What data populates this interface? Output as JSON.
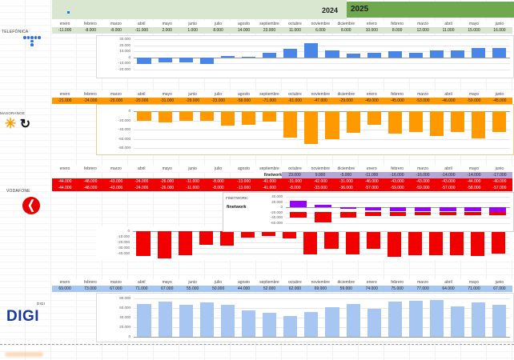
{
  "years": {
    "y2024": "2024",
    "y2025": "2025"
  },
  "months": [
    "enero",
    "febrero",
    "marzo",
    "abril",
    "mayo",
    "junio",
    "julio",
    "agosto",
    "septiembre",
    "octubre",
    "noviembre",
    "diciembre",
    "enero",
    "febrero",
    "marzo",
    "abril",
    "mayo",
    "junio"
  ],
  "colors": {
    "telefonica": "#4a86e8",
    "masorange": "#ff9900",
    "vodafone": "#f20000",
    "finetwork": "#9900ff",
    "digi": "#a7c7f2",
    "band_light": "#d9e7d0",
    "band_dark": "#6fa84f",
    "mint_row": "#d9e7d2",
    "purple_row": "#b3a6d9"
  },
  "sections": {
    "telefonica": {
      "name": "TELEFÓNICA",
      "values": [
        "-11.000",
        "-8.000",
        "-8.000",
        "-11.000",
        "2.000",
        "1.000",
        "8.000",
        "14.000",
        "23.000",
        "11.000",
        "6.000",
        "8.000",
        "10.000",
        "8.000",
        "12.000",
        "11.000",
        "15.000",
        "16.000"
      ],
      "nums": [
        -11,
        -8,
        -8,
        -11,
        2,
        1,
        8,
        14,
        23,
        11,
        6,
        8,
        10,
        8,
        12,
        11,
        15,
        16
      ],
      "axis": [
        "30.000",
        "20.000",
        "10.000",
        "0",
        "-10.000",
        "-20.000"
      ]
    },
    "masorange": {
      "name": "MASORANGE",
      "values": [
        "-21.000",
        "-24.000",
        "-20.000",
        "-20.000",
        "-31.000",
        "-29.000",
        "-23.000",
        "-58.000",
        "-71.000",
        "-61.000",
        "-47.000",
        "-29.000",
        "-49.000",
        "-45.000",
        "-53.000",
        "-46.000",
        "-59.000",
        "-45.000"
      ],
      "nums": [
        -21,
        -24,
        -20,
        -20,
        -31,
        -29,
        -23,
        -58,
        -71,
        -61,
        -47,
        -29,
        -49,
        -45,
        -53,
        -46,
        -59,
        -45
      ],
      "axis": [
        "0",
        "-20.000",
        "-40.000",
        "-60.000",
        "-80.000"
      ]
    },
    "vodafone": {
      "name": "VODAFONE",
      "values_row1": [
        "-44.000",
        "-48.000",
        "-43.000",
        "-24.000",
        "-26.000",
        "-11.000",
        "-8.000",
        "-13.000",
        "-41.000",
        "-31.000",
        "-42.000",
        "-31.000",
        "-46.000",
        "-43.000",
        "-43.000",
        "-43.000",
        "-44.000",
        "-40.000"
      ],
      "values_row2": [
        "-44.000",
        "-48.000",
        "-43.000",
        "-24.000",
        "-26.000",
        "-11.000",
        "-8.000",
        "-13.000",
        "-41.000",
        "-8.000",
        "-33.000",
        "-36.000",
        "-57.000",
        "-59.000",
        "-59.000",
        "-57.000",
        "-58.000",
        "-57.000"
      ],
      "nums": [
        -44,
        -48,
        -43,
        -24,
        -26,
        -11,
        -8,
        -13,
        -41,
        -31,
        -42,
        -31,
        -46,
        -43,
        -43,
        -43,
        -44,
        -40
      ],
      "axis": [
        "0",
        "-10.000",
        "-20.000",
        "-30.000",
        "-40.000"
      ],
      "inset": {
        "title": "FINETWORK:",
        "legend": "finetwork",
        "row_label": "finetwork",
        "values": [
          "23.000",
          "9.000",
          "-5.000",
          "-11.000",
          "-16.000",
          "-16.000",
          "-14.000",
          "-14.000",
          "-17.000"
        ],
        "nums": [
          23,
          9,
          -5,
          -11,
          -16,
          -16,
          -14,
          -14,
          -17
        ],
        "red_nums": [
          -31,
          -62,
          -31,
          -22,
          -23,
          -21,
          -21,
          -19,
          -21
        ],
        "axis": [
          "40.000",
          "20.000",
          "0",
          "-20.000",
          "-40.000",
          "-60.000"
        ]
      }
    },
    "digi": {
      "name": "DIGI",
      "logo": "DIGI",
      "values": [
        "69.000",
        "73.000",
        "67.000",
        "71.000",
        "67.000",
        "55.000",
        "50.000",
        "44.000",
        "52.000",
        "62.000",
        "69.000",
        "59.000",
        "74.000",
        "75.000",
        "77.000",
        "64.000",
        "71.000",
        "67.000"
      ],
      "nums": [
        69,
        73,
        67,
        71,
        67,
        55,
        50,
        44,
        52,
        62,
        69,
        59,
        74,
        75,
        77,
        64,
        71,
        67
      ],
      "axis": [
        "80.000",
        "60.000",
        "40.000",
        "20.000",
        "0"
      ]
    }
  },
  "chart_data": [
    {
      "type": "bar",
      "title": "TELEFÓNICA",
      "categories": [
        "enero",
        "febrero",
        "marzo",
        "abril",
        "mayo",
        "junio",
        "julio",
        "agosto",
        "septiembre",
        "octubre",
        "noviembre",
        "diciembre",
        "enero",
        "febrero",
        "marzo",
        "abril",
        "mayo",
        "junio"
      ],
      "values": [
        -11000,
        -8000,
        -8000,
        -11000,
        2000,
        1000,
        8000,
        14000,
        23000,
        11000,
        6000,
        8000,
        10000,
        8000,
        12000,
        11000,
        15000,
        16000
      ],
      "ylim": [
        -20000,
        30000
      ]
    },
    {
      "type": "bar",
      "title": "MASORANGE",
      "categories": [
        "enero",
        "febrero",
        "marzo",
        "abril",
        "mayo",
        "junio",
        "julio",
        "agosto",
        "septiembre",
        "octubre",
        "noviembre",
        "diciembre",
        "enero",
        "febrero",
        "marzo",
        "abril",
        "mayo",
        "junio"
      ],
      "values": [
        -21000,
        -24000,
        -20000,
        -20000,
        -31000,
        -29000,
        -23000,
        -58000,
        -71000,
        -61000,
        -47000,
        -29000,
        -49000,
        -45000,
        -53000,
        -46000,
        -59000,
        -45000
      ],
      "ylim": [
        -80000,
        0
      ]
    },
    {
      "type": "bar",
      "title": "VODAFONE",
      "categories": [
        "enero",
        "febrero",
        "marzo",
        "abril",
        "mayo",
        "junio",
        "julio",
        "agosto",
        "septiembre",
        "octubre",
        "noviembre",
        "diciembre",
        "enero",
        "febrero",
        "marzo",
        "abril",
        "mayo",
        "junio"
      ],
      "values": [
        -44000,
        -48000,
        -43000,
        -24000,
        -26000,
        -11000,
        -8000,
        -13000,
        -41000,
        -31000,
        -42000,
        -31000,
        -46000,
        -43000,
        -43000,
        -43000,
        -44000,
        -40000
      ],
      "ylim": [
        -40000,
        0
      ]
    },
    {
      "type": "bar",
      "title": "finetwork",
      "categories": [
        "octubre",
        "noviembre",
        "diciembre",
        "enero",
        "febrero",
        "marzo",
        "abril",
        "mayo",
        "junio"
      ],
      "values": [
        23000,
        9000,
        -5000,
        -11000,
        -16000,
        -16000,
        -14000,
        -14000,
        -17000
      ],
      "ylim": [
        -60000,
        40000
      ]
    },
    {
      "type": "bar",
      "title": "DIGI",
      "categories": [
        "enero",
        "febrero",
        "marzo",
        "abril",
        "mayo",
        "junio",
        "julio",
        "agosto",
        "septiembre",
        "octubre",
        "noviembre",
        "diciembre",
        "enero",
        "febrero",
        "marzo",
        "abril",
        "mayo",
        "junio"
      ],
      "values": [
        69000,
        73000,
        67000,
        71000,
        67000,
        55000,
        50000,
        44000,
        52000,
        62000,
        69000,
        59000,
        74000,
        75000,
        77000,
        64000,
        71000,
        67000
      ],
      "ylim": [
        0,
        80000
      ]
    }
  ]
}
